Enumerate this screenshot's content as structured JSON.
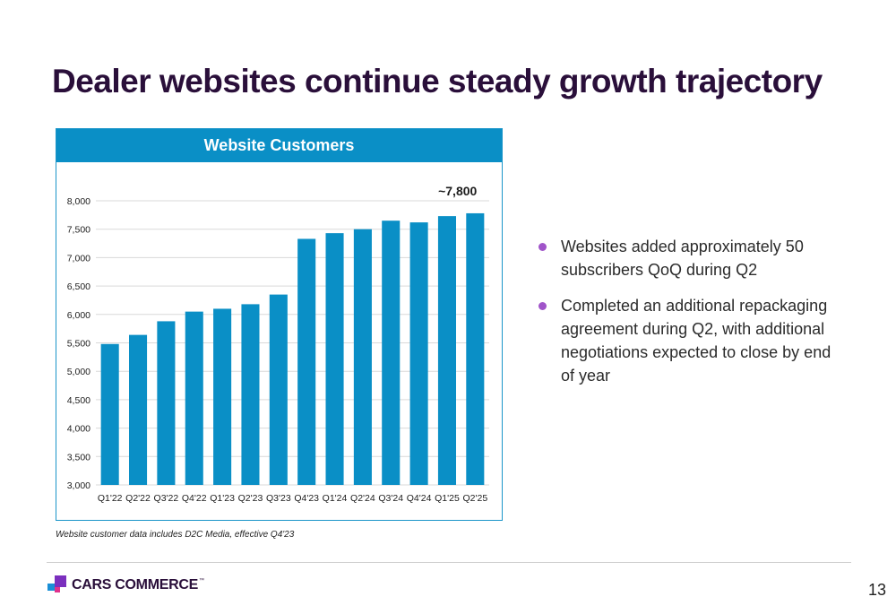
{
  "slide": {
    "title": "Dealer websites continue steady growth trajectory",
    "footnote": "Website customer data includes D2C Media, effective Q4'23",
    "page_number": "13"
  },
  "bullets": [
    "Websites added approximately 50 subscribers QoQ during Q2",
    "Completed an additional repackaging agreement during Q2, with additional negotiations expected to close by end of year"
  ],
  "logo": {
    "text": "CARS COMMERCE",
    "tm": "™",
    "colors": [
      "#7b2fbe",
      "#1a8fd6",
      "#e0318c",
      "#2a0f3a"
    ]
  },
  "chart_data": {
    "type": "bar",
    "title": "Website Customers",
    "categories": [
      "Q1'22",
      "Q2'22",
      "Q3'22",
      "Q4'22",
      "Q1'23",
      "Q2'23",
      "Q3'23",
      "Q4'23",
      "Q1'24",
      "Q2'24",
      "Q3'24",
      "Q4'24",
      "Q1'25",
      "Q2'25"
    ],
    "values": [
      5480,
      5640,
      5880,
      6050,
      6100,
      6180,
      6350,
      7330,
      7430,
      7500,
      7650,
      7620,
      7730,
      7780
    ],
    "ylim": [
      3000,
      8000
    ],
    "yticks": [
      3000,
      3500,
      4000,
      4500,
      5000,
      5500,
      6000,
      6500,
      7000,
      7500,
      8000
    ],
    "ytick_labels": [
      "3,000",
      "3,500",
      "4,000",
      "4,500",
      "5,000",
      "5,500",
      "6,000",
      "6,500",
      "7,000",
      "7,500",
      "8,000"
    ],
    "annotation": {
      "text": "~7,800",
      "category": "Q2'25"
    },
    "bar_color": "#0a8fc6",
    "grid": true,
    "legend": "none"
  }
}
